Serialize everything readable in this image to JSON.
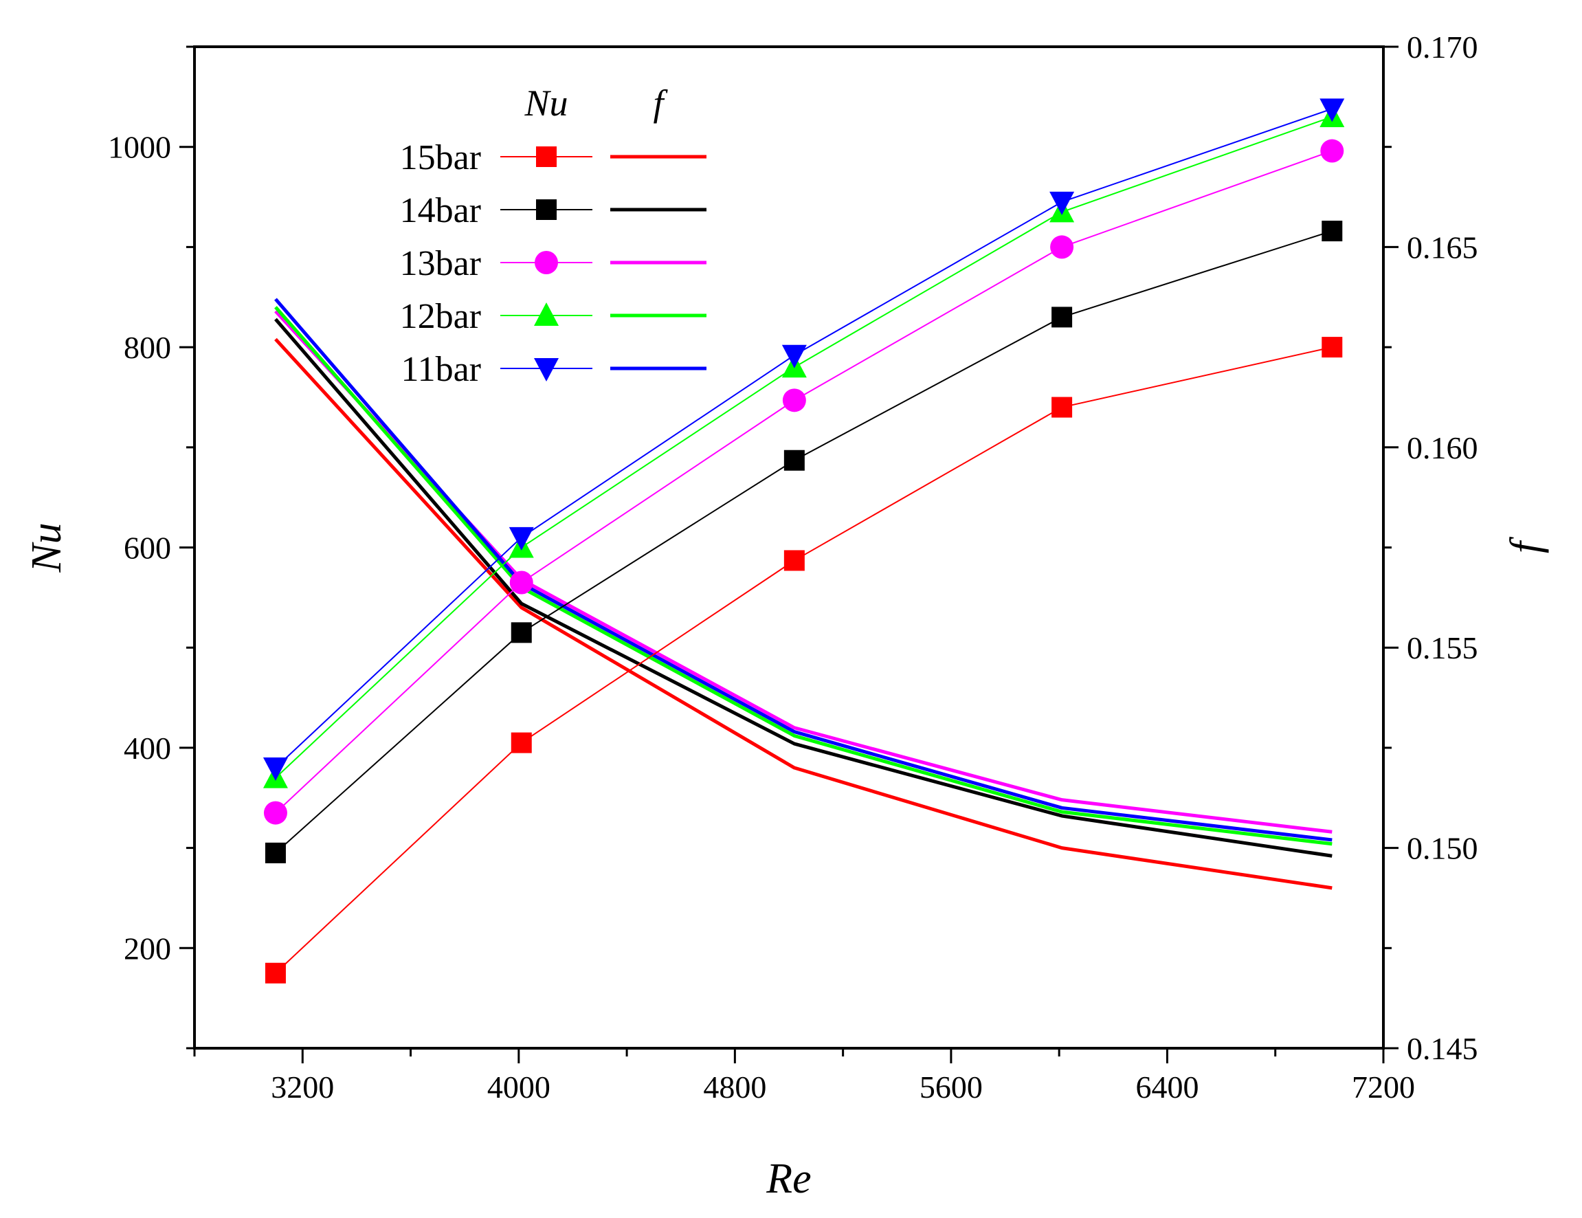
{
  "chart_data": {
    "type": "line",
    "dual_axis": true,
    "x": [
      3100,
      4010,
      5020,
      6010,
      7010
    ],
    "xlabel": "Re",
    "xlim": [
      2800,
      7200
    ],
    "xticks": [
      3200,
      4000,
      4800,
      5600,
      6400,
      7200
    ],
    "xtick_labels": [
      "3200",
      "4000",
      "4800",
      "5600",
      "6400",
      "7200"
    ],
    "ylabel_left": "Nu",
    "ylim_left": [
      100,
      1100
    ],
    "yticks_left": [
      200,
      400,
      600,
      800,
      1000
    ],
    "ytick_labels_left": [
      "200",
      "400",
      "600",
      "800",
      "1000"
    ],
    "ylabel_right": "f",
    "ylim_right": [
      0.145,
      0.17
    ],
    "yticks_right": [
      0.145,
      0.15,
      0.155,
      0.16,
      0.165,
      0.17
    ],
    "ytick_labels_right": [
      "0.145",
      "0.150",
      "0.155",
      "0.160",
      "0.165",
      "0.170"
    ],
    "legend": {
      "header_nu": "Nu",
      "header_f": "f",
      "position": "top-left"
    },
    "series": [
      {
        "name": "15bar",
        "color": "#ff0000",
        "marker": "square",
        "nu": [
          175,
          405,
          587,
          740,
          800
        ],
        "f": [
          0.1627,
          0.156,
          0.152,
          0.15,
          0.149
        ]
      },
      {
        "name": "14bar",
        "color": "#000000",
        "marker": "square",
        "nu": [
          295,
          515,
          687,
          830,
          916
        ],
        "f": [
          0.1632,
          0.1561,
          0.1526,
          0.1508,
          0.1498
        ]
      },
      {
        "name": "13bar",
        "color": "#ff00ff",
        "marker": "circle",
        "nu": [
          335,
          565,
          747,
          900,
          996
        ],
        "f": [
          0.1634,
          0.1567,
          0.153,
          0.1512,
          0.1504
        ]
      },
      {
        "name": "12bar",
        "color": "#00ff00",
        "marker": "triangle-up",
        "nu": [
          370,
          600,
          780,
          935,
          1030
        ],
        "f": [
          0.1635,
          0.1565,
          0.1528,
          0.1509,
          0.1501
        ]
      },
      {
        "name": "11bar",
        "color": "#0000ff",
        "marker": "triangle-down",
        "nu": [
          380,
          610,
          792,
          945,
          1038
        ],
        "f": [
          0.1637,
          0.1566,
          0.1529,
          0.151,
          0.1502
        ]
      }
    ]
  }
}
